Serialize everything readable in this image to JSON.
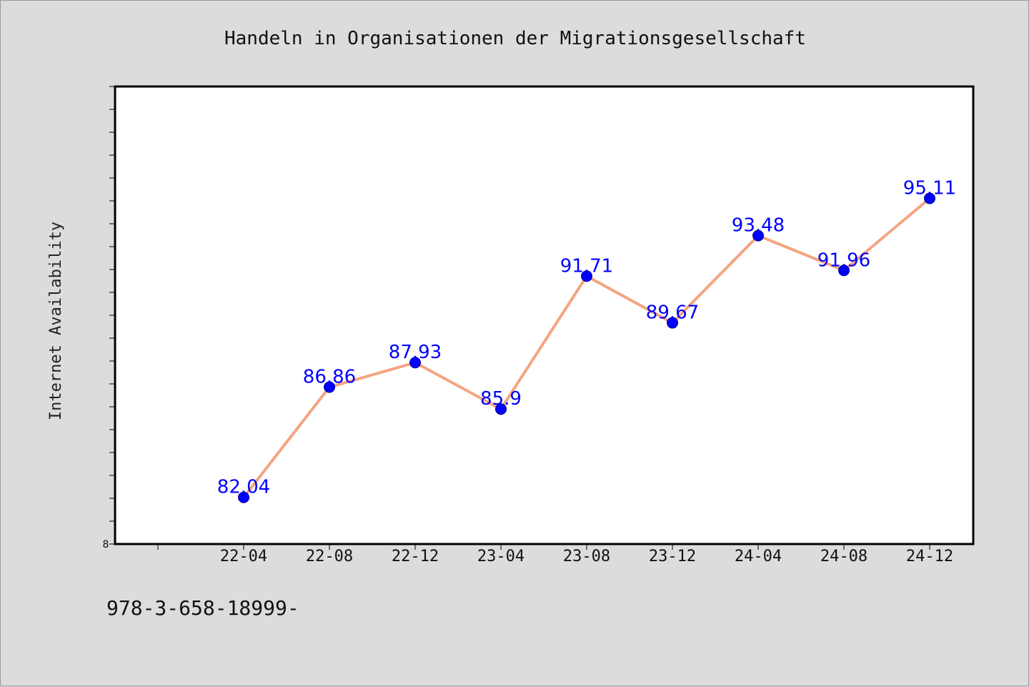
{
  "footer": {
    "text": "978-3-658-18999-"
  },
  "colors": {
    "line": "#f4a582",
    "marker": "#0000ff",
    "label": "#0000ff",
    "plot_background": "#ffffff",
    "page_background": "#dcdcdc"
  },
  "chart_data": {
    "type": "line",
    "title": "Handeln in Organisationen der Migrationsgesellschaft",
    "xlabel": "",
    "ylabel": "Internet Availability",
    "categories": [
      "22-04",
      "22-08",
      "22-12",
      "23-04",
      "23-08",
      "23-12",
      "24-04",
      "24-08",
      "24-12"
    ],
    "y_min_label": "8",
    "series": [
      {
        "values": [
          82.04,
          86.86,
          87.93,
          85.9,
          91.71,
          89.67,
          93.48,
          91.96,
          95.11
        ]
      }
    ],
    "data_labels": [
      "82.04",
      "86.86",
      "87.93",
      "85.9",
      "91.71",
      "89.67",
      "93.48",
      "91.96",
      "95.11"
    ],
    "ylim": [
      80,
      100
    ],
    "grid": false,
    "legend": "none"
  }
}
